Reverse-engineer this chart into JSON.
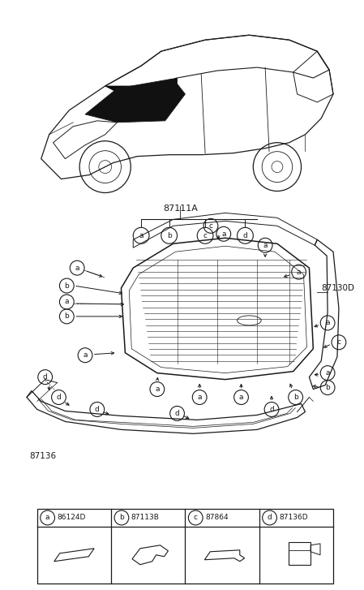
{
  "bg_color": "#ffffff",
  "line_color": "#1a1a1a",
  "text_color": "#1a1a1a",
  "part_labels": {
    "a": "86124D",
    "b": "87113B",
    "c": "87864",
    "d": "87136D"
  },
  "fig_w": 4.49,
  "fig_h": 7.27,
  "dpi": 100,
  "car_label": "87111A",
  "seal_label": "87130D",
  "moulding_label": "87136"
}
